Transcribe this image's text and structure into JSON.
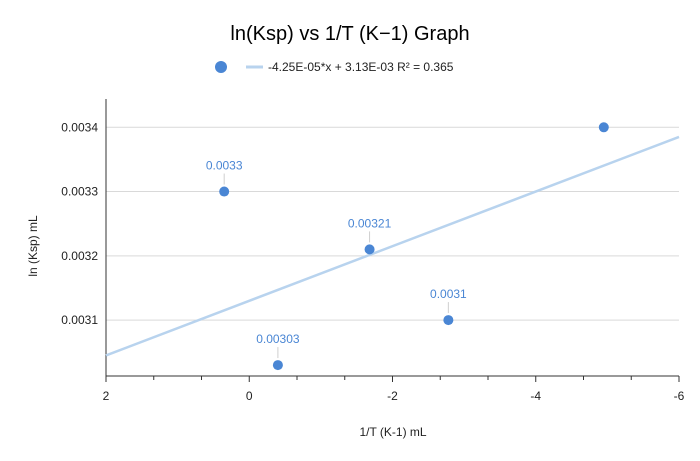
{
  "chart_data": {
    "type": "scatter",
    "title": "ln(Ksp) vs 1/T (K−1) Graph",
    "xlabel": "1/T (K-1) mL",
    "ylabel": "ln (Ksp) mL",
    "xlim": [
      2,
      -6
    ],
    "ylim": [
      0.003013,
      0.003444
    ],
    "x_ticks": [
      2,
      0,
      -2,
      -4,
      -6
    ],
    "x_tick_labels": [
      "2",
      "0",
      "-2",
      "-4",
      "-6"
    ],
    "y_ticks": [
      0.0031,
      0.0032,
      0.0033,
      0.0034
    ],
    "y_tick_labels": [
      "0.0031",
      "0.0032",
      "0.0033",
      "0.0034"
    ],
    "grid": true,
    "legend": "top",
    "point_color": "#4a86d4",
    "trend_color": "#b8d3ee",
    "points": [
      {
        "x": -0.4,
        "y": 0.00303,
        "label": "0.00303"
      },
      {
        "x": 0.35,
        "y": 0.0033,
        "label": "0.0033"
      },
      {
        "x": -1.68,
        "y": 0.00321,
        "label": "0.00321"
      },
      {
        "x": -2.78,
        "y": 0.0031,
        "label": "0.0031"
      },
      {
        "x": -4.95,
        "y": 0.0034,
        "label": ""
      }
    ],
    "trendline": {
      "label": "-4.25E-05*x + 3.13E-03 R² = 0.365",
      "slope": -4.25e-05,
      "intercept": 0.00313,
      "x_range": [
        2,
        -6
      ]
    }
  }
}
